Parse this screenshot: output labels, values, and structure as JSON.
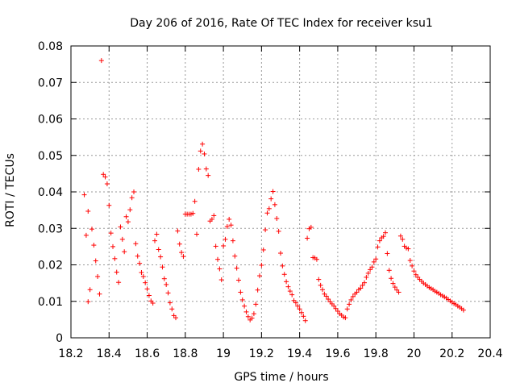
{
  "chart_data": {
    "type": "scatter",
    "title": "Day 206 of 2016, Rate Of TEC Index for receiver ksu1",
    "xlabel": "GPS time / hours",
    "ylabel": "ROTI / TECUs",
    "xlim": [
      18.2,
      20.4
    ],
    "ylim": [
      0,
      0.08
    ],
    "grid": true,
    "legend": "none",
    "marker": "plus",
    "color": "#ff0000",
    "x_tick_labels": [
      "18.2",
      "18.4",
      "18.6",
      "18.8",
      "19",
      "19.2",
      "19.4",
      "19.6",
      "19.8",
      "20",
      "20.2",
      "20.4"
    ],
    "y_tick_labels": [
      "0",
      "0.01",
      "0.02",
      "0.03",
      "0.04",
      "0.05",
      "0.06",
      "0.07",
      "0.08"
    ],
    "series": [
      {
        "name": "ROTI",
        "points": [
          [
            18.27,
            0.0392
          ],
          [
            18.28,
            0.0281
          ],
          [
            18.29,
            0.0347
          ],
          [
            18.29,
            0.0099
          ],
          [
            18.3,
            0.0132
          ],
          [
            18.31,
            0.0298
          ],
          [
            18.32,
            0.0254
          ],
          [
            18.33,
            0.0211
          ],
          [
            18.34,
            0.0168
          ],
          [
            18.35,
            0.012
          ],
          [
            18.36,
            0.076
          ],
          [
            18.37,
            0.0448
          ],
          [
            18.38,
            0.0441
          ],
          [
            18.39,
            0.0422
          ],
          [
            18.4,
            0.0363
          ],
          [
            18.41,
            0.0287
          ],
          [
            18.42,
            0.025
          ],
          [
            18.43,
            0.0217
          ],
          [
            18.44,
            0.018
          ],
          [
            18.45,
            0.0152
          ],
          [
            18.46,
            0.0304
          ],
          [
            18.47,
            0.027
          ],
          [
            18.48,
            0.0236
          ],
          [
            18.49,
            0.0332
          ],
          [
            18.5,
            0.0318
          ],
          [
            18.51,
            0.0351
          ],
          [
            18.52,
            0.0384
          ],
          [
            18.53,
            0.04
          ],
          [
            18.54,
            0.0258
          ],
          [
            18.55,
            0.0224
          ],
          [
            18.56,
            0.0204
          ],
          [
            18.57,
            0.0179
          ],
          [
            18.58,
            0.0168
          ],
          [
            18.59,
            0.0151
          ],
          [
            18.6,
            0.0134
          ],
          [
            18.61,
            0.0116
          ],
          [
            18.62,
            0.0101
          ],
          [
            18.63,
            0.0095
          ],
          [
            18.64,
            0.0266
          ],
          [
            18.65,
            0.0284
          ],
          [
            18.66,
            0.0242
          ],
          [
            18.67,
            0.0222
          ],
          [
            18.68,
            0.0194
          ],
          [
            18.69,
            0.0162
          ],
          [
            18.7,
            0.0146
          ],
          [
            18.71,
            0.0123
          ],
          [
            18.72,
            0.0096
          ],
          [
            18.73,
            0.0079
          ],
          [
            18.74,
            0.0061
          ],
          [
            18.75,
            0.0055
          ],
          [
            18.76,
            0.0293
          ],
          [
            18.77,
            0.0257
          ],
          [
            18.78,
            0.0234
          ],
          [
            18.79,
            0.0223
          ],
          [
            18.8,
            0.0339
          ],
          [
            18.81,
            0.0339
          ],
          [
            18.82,
            0.0339
          ],
          [
            18.83,
            0.0339
          ],
          [
            18.84,
            0.0341
          ],
          [
            18.85,
            0.0374
          ],
          [
            18.86,
            0.0284
          ],
          [
            18.87,
            0.0462
          ],
          [
            18.88,
            0.0512
          ],
          [
            18.89,
            0.0531
          ],
          [
            18.9,
            0.0504
          ],
          [
            18.91,
            0.0463
          ],
          [
            18.92,
            0.0445
          ],
          [
            18.93,
            0.032
          ],
          [
            18.94,
            0.0325
          ],
          [
            18.95,
            0.0335
          ],
          [
            18.96,
            0.0251
          ],
          [
            18.97,
            0.0215
          ],
          [
            18.98,
            0.0189
          ],
          [
            18.99,
            0.0159
          ],
          [
            19.0,
            0.0252
          ],
          [
            19.01,
            0.027
          ],
          [
            19.02,
            0.0305
          ],
          [
            19.03,
            0.0325
          ],
          [
            19.04,
            0.0309
          ],
          [
            19.05,
            0.0266
          ],
          [
            19.06,
            0.0224
          ],
          [
            19.07,
            0.0191
          ],
          [
            19.08,
            0.0158
          ],
          [
            19.09,
            0.0125
          ],
          [
            19.1,
            0.0104
          ],
          [
            19.11,
            0.0087
          ],
          [
            19.12,
            0.0071
          ],
          [
            19.13,
            0.0058
          ],
          [
            19.14,
            0.0049
          ],
          [
            19.15,
            0.0054
          ],
          [
            19.16,
            0.0066
          ],
          [
            19.17,
            0.0092
          ],
          [
            19.18,
            0.0131
          ],
          [
            19.19,
            0.017
          ],
          [
            19.2,
            0.0199
          ],
          [
            19.21,
            0.0241
          ],
          [
            19.22,
            0.0296
          ],
          [
            19.23,
            0.0342
          ],
          [
            19.24,
            0.0354
          ],
          [
            19.25,
            0.0381
          ],
          [
            19.26,
            0.0401
          ],
          [
            19.27,
            0.0365
          ],
          [
            19.28,
            0.0327
          ],
          [
            19.29,
            0.0292
          ],
          [
            19.3,
            0.0232
          ],
          [
            19.31,
            0.0197
          ],
          [
            19.32,
            0.0174
          ],
          [
            19.33,
            0.0154
          ],
          [
            19.34,
            0.014
          ],
          [
            19.35,
            0.0128
          ],
          [
            19.36,
            0.0118
          ],
          [
            19.37,
            0.0102
          ],
          [
            19.38,
            0.0096
          ],
          [
            19.39,
            0.0087
          ],
          [
            19.4,
            0.0079
          ],
          [
            19.41,
            0.0069
          ],
          [
            19.42,
            0.0059
          ],
          [
            19.43,
            0.0047
          ],
          [
            19.44,
            0.0273
          ],
          [
            19.45,
            0.0299
          ],
          [
            19.46,
            0.0303
          ],
          [
            19.47,
            0.022
          ],
          [
            19.48,
            0.0219
          ],
          [
            19.49,
            0.0215
          ],
          [
            19.5,
            0.016
          ],
          [
            19.51,
            0.0144
          ],
          [
            19.52,
            0.0132
          ],
          [
            19.53,
            0.012
          ],
          [
            19.54,
            0.0114
          ],
          [
            19.55,
            0.0106
          ],
          [
            19.56,
            0.0099
          ],
          [
            19.57,
            0.0093
          ],
          [
            19.58,
            0.0087
          ],
          [
            19.59,
            0.008
          ],
          [
            19.6,
            0.0073
          ],
          [
            19.61,
            0.0066
          ],
          [
            19.62,
            0.0062
          ],
          [
            19.63,
            0.0057
          ],
          [
            19.64,
            0.0055
          ],
          [
            19.65,
            0.0079
          ],
          [
            19.66,
            0.0092
          ],
          [
            19.67,
            0.0104
          ],
          [
            19.68,
            0.0113
          ],
          [
            19.69,
            0.012
          ],
          [
            19.7,
            0.0125
          ],
          [
            19.71,
            0.0132
          ],
          [
            19.72,
            0.0136
          ],
          [
            19.73,
            0.0144
          ],
          [
            19.74,
            0.0151
          ],
          [
            19.75,
            0.0166
          ],
          [
            19.76,
            0.0177
          ],
          [
            19.77,
            0.0187
          ],
          [
            19.78,
            0.0194
          ],
          [
            19.79,
            0.0208
          ],
          [
            19.8,
            0.0216
          ],
          [
            19.81,
            0.0249
          ],
          [
            19.82,
            0.0266
          ],
          [
            19.83,
            0.0274
          ],
          [
            19.84,
            0.0278
          ],
          [
            19.85,
            0.0288
          ],
          [
            19.86,
            0.0231
          ],
          [
            19.87,
            0.0185
          ],
          [
            19.88,
            0.0163
          ],
          [
            19.89,
            0.0149
          ],
          [
            19.9,
            0.0139
          ],
          [
            19.91,
            0.0131
          ],
          [
            19.92,
            0.0125
          ],
          [
            19.93,
            0.0279
          ],
          [
            19.94,
            0.027
          ],
          [
            19.95,
            0.0251
          ],
          [
            19.96,
            0.0246
          ],
          [
            19.97,
            0.0244
          ],
          [
            19.98,
            0.0212
          ],
          [
            19.99,
            0.0197
          ],
          [
            20.0,
            0.0183
          ],
          [
            20.01,
            0.0173
          ],
          [
            20.02,
            0.0166
          ],
          [
            20.03,
            0.016
          ],
          [
            20.04,
            0.0155
          ],
          [
            20.05,
            0.015
          ],
          [
            20.06,
            0.0146
          ],
          [
            20.07,
            0.0142
          ],
          [
            20.08,
            0.0138
          ],
          [
            20.09,
            0.0135
          ],
          [
            20.1,
            0.0132
          ],
          [
            20.11,
            0.0128
          ],
          [
            20.12,
            0.0125
          ],
          [
            20.13,
            0.0122
          ],
          [
            20.14,
            0.0118
          ],
          [
            20.15,
            0.0115
          ],
          [
            20.16,
            0.0112
          ],
          [
            20.17,
            0.0109
          ],
          [
            20.18,
            0.0105
          ],
          [
            20.19,
            0.0101
          ],
          [
            20.2,
            0.0098
          ],
          [
            20.21,
            0.0094
          ],
          [
            20.22,
            0.0091
          ],
          [
            20.23,
            0.0087
          ],
          [
            20.24,
            0.0084
          ],
          [
            20.25,
            0.008
          ],
          [
            20.26,
            0.0076
          ]
        ]
      }
    ]
  }
}
